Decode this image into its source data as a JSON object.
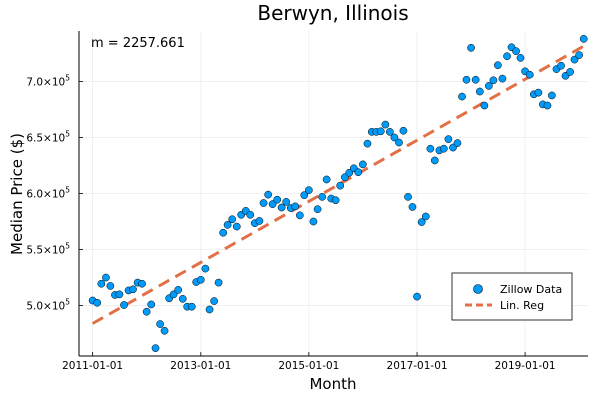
{
  "chart_data": {
    "type": "scatter",
    "title": "Berwyn, Illinois",
    "xlabel": "Month",
    "ylabel": "Median Price ($)",
    "annotation": "m = 2257.661",
    "x_ticks": [
      "2011-01-01",
      "2013-01-01",
      "2015-01-01",
      "2017-01-01",
      "2019-01-01"
    ],
    "y_ticks": [
      {
        "value": 500000,
        "mantissa": "5.0×10",
        "exp": "5"
      },
      {
        "value": 550000,
        "mantissa": "5.5×10",
        "exp": "5"
      },
      {
        "value": 600000,
        "mantissa": "6.0×10",
        "exp": "5"
      },
      {
        "value": 650000,
        "mantissa": "6.5×10",
        "exp": "5"
      },
      {
        "value": 700000,
        "mantissa": "7.0×10",
        "exp": "5"
      }
    ],
    "xlim": [
      "2010-10-01",
      "2020-03-01"
    ],
    "ylim": [
      455000,
      745000
    ],
    "grid": true,
    "legend_position": "bottom-right",
    "series": [
      {
        "name": "Zillow Data",
        "kind": "scatter",
        "color": "#009AF9",
        "points": [
          [
            "2011-01-01",
            504500
          ],
          [
            "2011-02-01",
            502500
          ],
          [
            "2011-03-01",
            519500
          ],
          [
            "2011-04-01",
            525000
          ],
          [
            "2011-05-01",
            517500
          ],
          [
            "2011-06-01",
            509500
          ],
          [
            "2011-07-01",
            510000
          ],
          [
            "2011-08-01",
            500500
          ],
          [
            "2011-09-01",
            513500
          ],
          [
            "2011-10-01",
            514500
          ],
          [
            "2011-11-01",
            520500
          ],
          [
            "2011-12-01",
            519500
          ],
          [
            "2012-01-01",
            494500
          ],
          [
            "2012-02-01",
            501000
          ],
          [
            "2012-03-01",
            462000
          ],
          [
            "2012-04-01",
            483500
          ],
          [
            "2012-05-01",
            477500
          ],
          [
            "2012-06-01",
            506500
          ],
          [
            "2012-07-01",
            510000
          ],
          [
            "2012-08-01",
            514000
          ],
          [
            "2012-09-01",
            506000
          ],
          [
            "2012-10-01",
            499000
          ],
          [
            "2012-11-01",
            499000
          ],
          [
            "2012-12-01",
            521000
          ],
          [
            "2013-01-01",
            523000
          ],
          [
            "2013-02-01",
            533000
          ],
          [
            "2013-03-01",
            496500
          ],
          [
            "2013-04-01",
            504000
          ],
          [
            "2013-05-01",
            520500
          ],
          [
            "2013-06-01",
            565000
          ],
          [
            "2013-07-01",
            572000
          ],
          [
            "2013-08-01",
            577000
          ],
          [
            "2013-09-01",
            570500
          ],
          [
            "2013-10-01",
            581000
          ],
          [
            "2013-11-01",
            584500
          ],
          [
            "2013-12-01",
            581000
          ],
          [
            "2014-01-01",
            573500
          ],
          [
            "2014-02-01",
            575500
          ],
          [
            "2014-03-01",
            591500
          ],
          [
            "2014-04-01",
            599000
          ],
          [
            "2014-05-01",
            590500
          ],
          [
            "2014-06-01",
            594500
          ],
          [
            "2014-07-01",
            587500
          ],
          [
            "2014-08-01",
            592500
          ],
          [
            "2014-09-01",
            587000
          ],
          [
            "2014-10-01",
            588500
          ],
          [
            "2014-11-01",
            580500
          ],
          [
            "2014-12-01",
            598500
          ],
          [
            "2015-01-01",
            603000
          ],
          [
            "2015-02-01",
            575000
          ],
          [
            "2015-03-01",
            586000
          ],
          [
            "2015-04-01",
            597000
          ],
          [
            "2015-05-01",
            612500
          ],
          [
            "2015-06-01",
            595500
          ],
          [
            "2015-07-01",
            594000
          ],
          [
            "2015-08-01",
            607000
          ],
          [
            "2015-09-01",
            614500
          ],
          [
            "2015-10-01",
            618500
          ],
          [
            "2015-11-01",
            622500
          ],
          [
            "2015-12-01",
            619000
          ],
          [
            "2016-01-01",
            626000
          ],
          [
            "2016-02-01",
            644500
          ],
          [
            "2016-03-01",
            655000
          ],
          [
            "2016-04-01",
            655000
          ],
          [
            "2016-05-01",
            655500
          ],
          [
            "2016-06-01",
            661500
          ],
          [
            "2016-07-01",
            655000
          ],
          [
            "2016-08-01",
            650000
          ],
          [
            "2016-09-01",
            645500
          ],
          [
            "2016-10-01",
            656000
          ],
          [
            "2016-11-01",
            597000
          ],
          [
            "2016-12-01",
            588000
          ],
          [
            "2017-01-01",
            508000
          ],
          [
            "2017-02-01",
            574500
          ],
          [
            "2017-03-01",
            579500
          ],
          [
            "2017-04-01",
            640000
          ],
          [
            "2017-05-01",
            629500
          ],
          [
            "2017-06-01",
            638500
          ],
          [
            "2017-07-01",
            640000
          ],
          [
            "2017-08-01",
            648500
          ],
          [
            "2017-09-01",
            641000
          ],
          [
            "2017-10-01",
            645000
          ],
          [
            "2017-11-01",
            686500
          ],
          [
            "2017-12-01",
            701500
          ],
          [
            "2018-01-01",
            730000
          ],
          [
            "2018-02-01",
            701500
          ],
          [
            "2018-03-01",
            691000
          ],
          [
            "2018-04-01",
            678500
          ],
          [
            "2018-05-01",
            696000
          ],
          [
            "2018-06-01",
            701000
          ],
          [
            "2018-07-01",
            714500
          ],
          [
            "2018-08-01",
            702500
          ],
          [
            "2018-09-01",
            722500
          ],
          [
            "2018-10-01",
            730500
          ],
          [
            "2018-11-01",
            727000
          ],
          [
            "2018-12-01",
            721000
          ],
          [
            "2019-01-01",
            709000
          ],
          [
            "2019-02-01",
            706000
          ],
          [
            "2019-03-01",
            688500
          ],
          [
            "2019-04-01",
            690000
          ],
          [
            "2019-05-01",
            679500
          ],
          [
            "2019-06-01",
            678500
          ],
          [
            "2019-07-01",
            687500
          ],
          [
            "2019-08-01",
            711000
          ],
          [
            "2019-09-01",
            714000
          ],
          [
            "2019-10-01",
            705000
          ],
          [
            "2019-11-01",
            708500
          ],
          [
            "2019-12-01",
            719500
          ],
          [
            "2020-01-01",
            723500
          ],
          [
            "2020-02-01",
            738000
          ]
        ]
      },
      {
        "name": "Lin. Reg",
        "kind": "line",
        "style": "dashed",
        "color": "#E26F46",
        "points": [
          [
            "2011-01-01",
            484000
          ],
          [
            "2020-02-01",
            731500
          ]
        ]
      }
    ]
  }
}
